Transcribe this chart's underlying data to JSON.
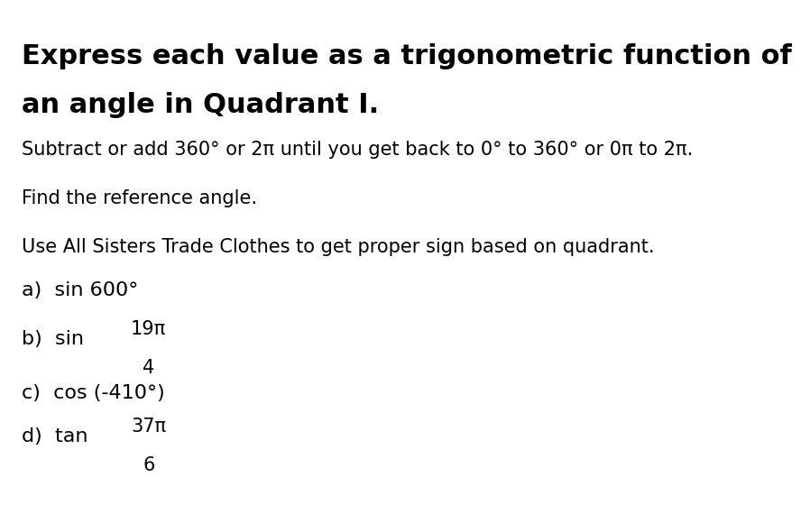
{
  "background_color": "#ffffff",
  "title_line1": "Express each value as a trigonometric function of",
  "title_line2": "an angle in Quadrant I.",
  "title_fontsize": 22,
  "title_font": "DejaVu Sans",
  "body_fontsize": 15,
  "body_font": "DejaVu Sans",
  "items_fontsize": 16,
  "line1": "Subtract or add 360° or 2π until you get back to 0° to 360° or 0π to 2π.",
  "line2": "Find the reference angle.",
  "line3": "Use All Sisters Trade Clothes to get proper sign based on quadrant.",
  "item_a_prefix": "a)  sin 600°",
  "item_b_prefix": "b)  sin ",
  "item_b_num": "19π",
  "item_b_den": "4",
  "item_c_prefix": "c)  cos (-410°)",
  "item_d_prefix": "d)  tan ",
  "item_d_num": "37π",
  "item_d_den": "6"
}
